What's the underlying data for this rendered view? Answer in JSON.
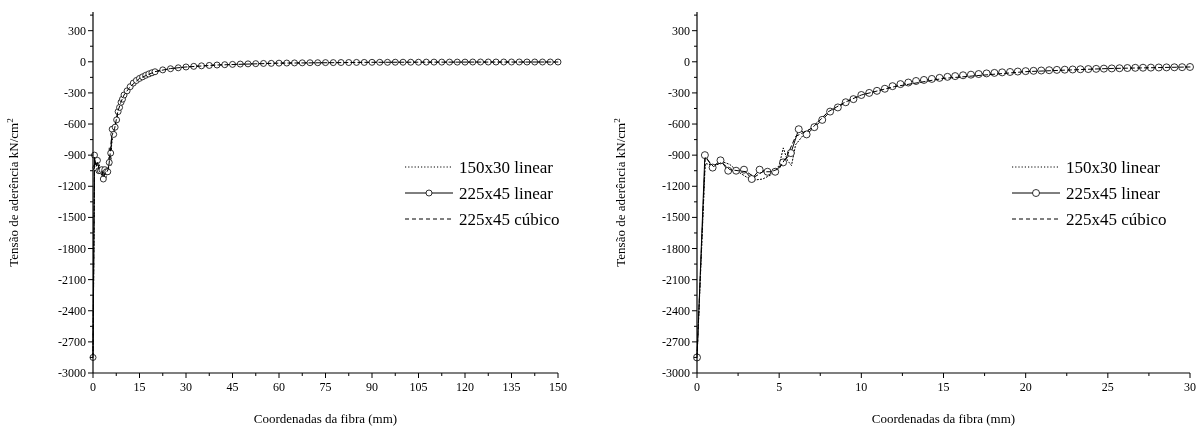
{
  "chart_data": [
    {
      "type": "line",
      "xlabel": "Coordenadas da fibra (mm)",
      "ylabel": "Tensão de aderência kN/cm$^{2}$",
      "xlim": [
        0,
        150
      ],
      "ylim": [
        -3000,
        480
      ],
      "xticks": [
        0,
        {
          "value": 7.5,
          "label": null
        },
        15,
        {
          "value": 22.5,
          "label": null
        },
        30,
        {
          "value": 37.5,
          "label": null
        },
        45,
        {
          "value": 52.5,
          "label": null
        },
        60,
        {
          "value": 67.5,
          "label": null
        },
        75,
        {
          "value": 82.5,
          "label": null
        },
        90,
        {
          "value": 97.5,
          "label": null
        },
        105,
        {
          "value": 112.5,
          "label": null
        },
        120,
        {
          "value": 127.5,
          "label": null
        },
        135,
        {
          "value": 142.5,
          "label": null
        },
        150
      ],
      "yticks": [
        -3000,
        {
          "value": -2850,
          "label": null
        },
        -2700,
        {
          "value": -2550,
          "label": null
        },
        -2400,
        {
          "value": -2250,
          "label": null
        },
        -2100,
        {
          "value": -1950,
          "label": null
        },
        -1800,
        {
          "value": -1650,
          "label": null
        },
        -1500,
        {
          "value": -1350,
          "label": null
        },
        -1200,
        {
          "value": -1050,
          "label": null
        },
        -900,
        {
          "value": -750,
          "label": null
        },
        -600,
        {
          "value": -450,
          "label": null
        },
        -300,
        {
          "value": -150,
          "label": null
        },
        0,
        {
          "value": 150,
          "label": null
        },
        300,
        {
          "value": 450,
          "label": null
        }
      ],
      "legend": "right",
      "grid": false,
      "series": [
        {
          "name": "150x30 linear",
          "color": "#000000",
          "line_style": "dotted",
          "marker": "none",
          "x": [
            0,
            0.5,
            1,
            1.5,
            2,
            2.5,
            3,
            3.5,
            4,
            4.5,
            5,
            5.25,
            5.5,
            5.75,
            6,
            6.5,
            7,
            8,
            9,
            10,
            12,
            15,
            20,
            25,
            30,
            40,
            60,
            90,
            120,
            150
          ],
          "values": [
            -2850,
            -980,
            -1000,
            -960,
            -990,
            -1060,
            -1110,
            -1140,
            -1130,
            -1090,
            -1000,
            -830,
            -950,
            -1000,
            -800,
            -700,
            -630,
            -480,
            -390,
            -320,
            -240,
            -160,
            -95,
            -65,
            -50,
            -31,
            -13,
            -5,
            -3,
            -2
          ]
        },
        {
          "name": "225x45 linear",
          "color": "#000000",
          "line_style": "solid",
          "marker": "circle",
          "x": [
            0,
            0.48,
            0.95,
            1.43,
            1.9,
            2.38,
            2.86,
            3.33,
            3.81,
            4.29,
            4.76,
            5.24,
            5.71,
            6.19,
            6.67,
            7.14,
            7.62,
            8.1,
            8.57,
            9.05,
            9.52,
            10,
            11,
            12,
            13,
            14,
            15,
            16,
            17,
            18,
            19,
            20,
            22.5,
            25,
            27.5,
            30,
            32.5,
            35,
            37.5,
            40,
            42.5,
            45,
            47.5,
            50,
            52.5,
            55,
            57.5,
            60,
            62.5,
            65,
            67.5,
            70,
            72.5,
            75,
            77.5,
            80,
            82.5,
            85,
            87.5,
            90,
            92.5,
            95,
            97.5,
            100,
            102.5,
            105,
            107.5,
            110,
            112.5,
            115,
            117.5,
            120,
            122.5,
            125,
            127.5,
            130,
            132.5,
            135,
            137.5,
            140,
            142.5,
            145,
            147.5,
            150
          ],
          "values": [
            -2850,
            -900,
            -1020,
            -950,
            -1050,
            -1050,
            -1040,
            -1130,
            -1040,
            -1060,
            -1060,
            -970,
            -880,
            -650,
            -700,
            -630,
            -560,
            -480,
            -440,
            -390,
            -360,
            -320,
            -280,
            -240,
            -205,
            -180,
            -160,
            -145,
            -130,
            -117,
            -106,
            -96,
            -78,
            -67,
            -58,
            -50,
            -44,
            -39,
            -35,
            -31,
            -28,
            -25,
            -22,
            -20,
            -18,
            -16,
            -15,
            -13,
            -12,
            -11,
            -10,
            -9,
            -9,
            -8,
            -8,
            -7,
            -7,
            -6,
            -6,
            -5,
            -5,
            -5,
            -4,
            -4,
            -4,
            -4,
            -3,
            -3,
            -3,
            -3,
            -3,
            -3,
            -2,
            -2,
            -2,
            -2,
            -2,
            -2,
            -2,
            -2,
            -2,
            -2,
            -2,
            -2
          ]
        },
        {
          "name": "225x45 cúbico",
          "color": "#000000",
          "line_style": "dashed",
          "marker": "none",
          "x": [
            0,
            0.5,
            1,
            1.5,
            2,
            2.5,
            3,
            3.5,
            4,
            4.5,
            5,
            5.5,
            6,
            6.5,
            7,
            8,
            9,
            10,
            12,
            15,
            20,
            25,
            30,
            40,
            60,
            90,
            120,
            150
          ],
          "values": [
            -2850,
            -920,
            -1010,
            -970,
            -1040,
            -1050,
            -1060,
            -1110,
            -1060,
            -1060,
            -1030,
            -900,
            -720,
            -680,
            -640,
            -480,
            -390,
            -320,
            -240,
            -160,
            -95,
            -65,
            -50,
            -31,
            -13,
            -5,
            -3,
            -2
          ]
        }
      ]
    },
    {
      "type": "line",
      "xlabel": "Coordenadas da fibra (mm)",
      "ylabel": "Tensão de aderência kN/cm$^{2}$",
      "xlim": [
        0,
        30
      ],
      "ylim": [
        -3000,
        480
      ],
      "xticks": [
        0,
        {
          "value": 2.5,
          "label": null
        },
        5,
        {
          "value": 7.5,
          "label": null
        },
        10,
        {
          "value": 12.5,
          "label": null
        },
        15,
        {
          "value": 17.5,
          "label": null
        },
        20,
        {
          "value": 22.5,
          "label": null
        },
        25,
        {
          "value": 27.5,
          "label": null
        },
        30
      ],
      "yticks": [
        -3000,
        {
          "value": -2850,
          "label": null
        },
        -2700,
        {
          "value": -2550,
          "label": null
        },
        -2400,
        {
          "value": -2250,
          "label": null
        },
        -2100,
        {
          "value": -1950,
          "label": null
        },
        -1800,
        {
          "value": -1650,
          "label": null
        },
        -1500,
        {
          "value": -1350,
          "label": null
        },
        -1200,
        {
          "value": -1050,
          "label": null
        },
        -900,
        {
          "value": -750,
          "label": null
        },
        -600,
        {
          "value": -450,
          "label": null
        },
        -300,
        {
          "value": -150,
          "label": null
        },
        0,
        {
          "value": 150,
          "label": null
        },
        300,
        {
          "value": 450,
          "label": null
        }
      ],
      "legend": "right",
      "grid": false,
      "series": [
        {
          "name": "150x30 linear",
          "color": "#000000",
          "line_style": "dotted",
          "marker": "none",
          "x": [
            0,
            0.5,
            1,
            1.5,
            2,
            2.5,
            3,
            3.5,
            4,
            4.5,
            5,
            5.25,
            5.5,
            5.75,
            6,
            6.5,
            7,
            8,
            9,
            10,
            12,
            15,
            20,
            25,
            30
          ],
          "values": [
            -2850,
            -980,
            -1000,
            -960,
            -990,
            -1060,
            -1110,
            -1140,
            -1130,
            -1090,
            -1000,
            -830,
            -950,
            -1000,
            -800,
            -700,
            -630,
            -480,
            -390,
            -320,
            -240,
            -160,
            -95,
            -65,
            -50
          ]
        },
        {
          "name": "225x45 linear",
          "color": "#000000",
          "line_style": "solid",
          "marker": "circle",
          "x": [
            0,
            0.48,
            0.95,
            1.43,
            1.9,
            2.38,
            2.86,
            3.33,
            3.81,
            4.29,
            4.76,
            5.24,
            5.71,
            6.19,
            6.67,
            7.14,
            7.62,
            8.1,
            8.57,
            9.05,
            9.52,
            10,
            10.48,
            10.95,
            11.43,
            11.9,
            12.38,
            12.86,
            13.33,
            13.81,
            14.29,
            14.76,
            15.24,
            15.71,
            16.19,
            16.67,
            17.14,
            17.62,
            18.1,
            18.57,
            19.05,
            19.52,
            20,
            20.48,
            20.95,
            21.43,
            21.9,
            22.38,
            22.86,
            23.33,
            23.81,
            24.29,
            24.76,
            25.24,
            25.71,
            26.19,
            26.67,
            27.14,
            27.62,
            28.1,
            28.57,
            29.05,
            29.52,
            30
          ],
          "values": [
            -2850,
            -900,
            -1020,
            -950,
            -1050,
            -1050,
            -1040,
            -1130,
            -1040,
            -1060,
            -1060,
            -970,
            -880,
            -650,
            -700,
            -630,
            -560,
            -480,
            -440,
            -390,
            -360,
            -320,
            -300,
            -280,
            -260,
            -235,
            -215,
            -200,
            -185,
            -175,
            -165,
            -155,
            -145,
            -138,
            -130,
            -124,
            -118,
            -112,
            -107,
            -102,
            -98,
            -94,
            -90,
            -87,
            -84,
            -81,
            -78,
            -76,
            -74,
            -72,
            -70,
            -68,
            -66,
            -64,
            -62,
            -60,
            -58,
            -57,
            -56,
            -55,
            -54,
            -53,
            -52,
            -50
          ]
        },
        {
          "name": "225x45 cúbico",
          "color": "#000000",
          "line_style": "dashed",
          "marker": "none",
          "x": [
            0,
            0.5,
            1,
            1.5,
            2,
            2.5,
            3,
            3.5,
            4,
            4.5,
            5,
            5.5,
            6,
            6.5,
            7,
            8,
            9,
            10,
            12,
            15,
            20,
            25,
            30
          ],
          "values": [
            -2850,
            -920,
            -1010,
            -970,
            -1040,
            -1050,
            -1060,
            -1110,
            -1060,
            -1060,
            -1030,
            -900,
            -720,
            -680,
            -640,
            -480,
            -390,
            -320,
            -240,
            -160,
            -95,
            -65,
            -50
          ]
        }
      ]
    }
  ]
}
